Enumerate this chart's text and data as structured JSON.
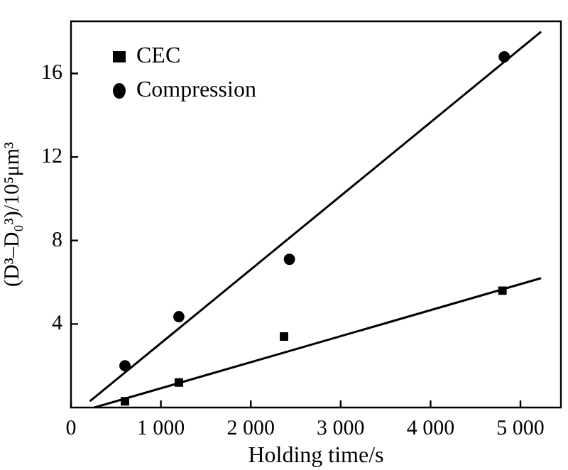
{
  "chart_data": {
    "type": "scatter",
    "xlabel": "Holding time/s",
    "ylabel": "(D³–D₀³)/10⁵μm³",
    "xlim": [
      0,
      5450
    ],
    "ylim": [
      0,
      18.5
    ],
    "xticks": [
      0,
      {
        "value": 1000,
        "label": "1 000"
      },
      {
        "value": 2000,
        "label": "2 000"
      },
      {
        "value": 3000,
        "label": "3 000"
      },
      {
        "value": 4000,
        "label": "4 000"
      },
      {
        "value": 5000,
        "label": "5 000"
      }
    ],
    "yticks": [
      4,
      8,
      12,
      16
    ],
    "grid": false,
    "legend": "top left",
    "series": [
      {
        "name": "CEC",
        "color": "#000000",
        "marker": "square",
        "x": [
          600,
          1200,
          2370,
          4800
        ],
        "values": [
          0.3,
          1.2,
          3.4,
          5.6
        ]
      },
      {
        "name": "Compression",
        "color": "#000000",
        "marker": "circle",
        "x": [
          600,
          1200,
          2430,
          4820
        ],
        "values": [
          2.0,
          4.35,
          7.1,
          16.8
        ]
      },
      {
        "type": "line",
        "color": "#000000",
        "marker": "none",
        "x": [
          260,
          5230
        ],
        "values": [
          0,
          6.2
        ]
      },
      {
        "type": "line",
        "color": "#000000",
        "marker": "none",
        "x": [
          210,
          5230
        ],
        "values": [
          0.3,
          18.0
        ]
      }
    ]
  }
}
